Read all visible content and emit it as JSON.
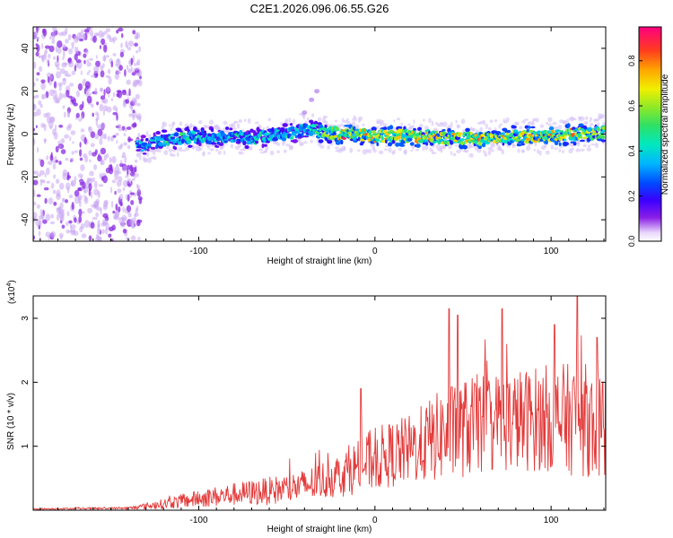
{
  "figure_title": "C2E1.2026.096.06.55.G26",
  "chart_data": [
    {
      "type": "heatmap",
      "title": "C2E1.2026.096.06.55.G26",
      "xlabel": "Height of straight line (km)",
      "ylabel": "Frequency (Hz)",
      "xlim": [
        -194,
        131
      ],
      "ylim": [
        -50,
        50
      ],
      "xticks": [
        -100,
        0,
        100
      ],
      "yticks": [
        -40,
        -20,
        0,
        20,
        40
      ],
      "x_tick_labels": [
        "-100",
        "0",
        "100"
      ],
      "y_tick_labels": [
        "-40",
        "-20",
        "0",
        "20",
        "40"
      ],
      "colorbar": {
        "label": "Normalized spectral amplitude",
        "range": [
          0,
          0.95
        ],
        "ticks": [
          0.0,
          0.2,
          0.4,
          0.6,
          0.8
        ],
        "tick_labels": [
          "0.0",
          "0.2",
          "0.4",
          "0.6",
          "0.8"
        ]
      },
      "noise_region_x": [
        -194,
        -133
      ],
      "ridge": [
        {
          "x": -165,
          "f": -10,
          "amp": 0.3
        },
        {
          "x": -150,
          "f": -8,
          "amp": 0.35
        },
        {
          "x": -140,
          "f": -7,
          "amp": 0.4
        },
        {
          "x": -130,
          "f": -5,
          "amp": 0.42
        },
        {
          "x": -120,
          "f": -3,
          "amp": 0.48
        },
        {
          "x": -110,
          "f": -2,
          "amp": 0.55
        },
        {
          "x": -100,
          "f": -1,
          "amp": 0.55
        },
        {
          "x": -90,
          "f": -2,
          "amp": 0.45
        },
        {
          "x": -80,
          "f": -1,
          "amp": 0.5
        },
        {
          "x": -70,
          "f": -2,
          "amp": 0.45
        },
        {
          "x": -60,
          "f": -1,
          "amp": 0.5
        },
        {
          "x": -50,
          "f": 0,
          "amp": 0.5
        },
        {
          "x": -40,
          "f": 2,
          "amp": 0.5
        },
        {
          "x": -30,
          "f": 1,
          "amp": 0.6
        },
        {
          "x": -20,
          "f": 0,
          "amp": 0.9
        },
        {
          "x": -10,
          "f": 0,
          "amp": 0.75
        },
        {
          "x": 0,
          "f": -1,
          "amp": 0.85
        },
        {
          "x": 10,
          "f": -1,
          "amp": 0.8
        },
        {
          "x": 20,
          "f": -1,
          "amp": 0.85
        },
        {
          "x": 30,
          "f": -1,
          "amp": 0.8
        },
        {
          "x": 40,
          "f": -2,
          "amp": 0.75
        },
        {
          "x": 50,
          "f": -2,
          "amp": 0.75
        },
        {
          "x": 60,
          "f": -2,
          "amp": 0.85
        },
        {
          "x": 70,
          "f": -1,
          "amp": 0.8
        },
        {
          "x": 80,
          "f": -1,
          "amp": 0.75
        },
        {
          "x": 90,
          "f": -1,
          "amp": 0.8
        },
        {
          "x": 100,
          "f": -1,
          "amp": 0.85
        },
        {
          "x": 110,
          "f": 0,
          "amp": 0.8
        },
        {
          "x": 120,
          "f": 0,
          "amp": 0.75
        },
        {
          "x": 131,
          "f": 1,
          "amp": 0.7
        }
      ],
      "spur": [
        {
          "x": -40,
          "f": 10
        },
        {
          "x": -36,
          "f": 16
        },
        {
          "x": -33,
          "f": 20
        }
      ]
    },
    {
      "type": "line",
      "xlabel": "Height of straight line (km)",
      "ylabel": "SNR (10 * v/v)",
      "y_scale_label": "(x10",
      "y_scale_exponent": "4",
      "y_scale_suffix": ")",
      "xlim": [
        -194,
        131
      ],
      "ylim": [
        0,
        3.35
      ],
      "xticks": [
        -100,
        0,
        100
      ],
      "yticks": [
        1,
        2,
        3
      ],
      "x_tick_labels": [
        "-100",
        "0",
        "100"
      ],
      "y_tick_labels": [
        "1",
        "2",
        "3"
      ],
      "line_color": "#e23a3a",
      "envelope": [
        {
          "x": -194,
          "mean": 0.02,
          "spread": 0.01
        },
        {
          "x": -140,
          "mean": 0.03,
          "spread": 0.02
        },
        {
          "x": -120,
          "mean": 0.1,
          "spread": 0.08
        },
        {
          "x": -100,
          "mean": 0.18,
          "spread": 0.14
        },
        {
          "x": -80,
          "mean": 0.25,
          "spread": 0.18
        },
        {
          "x": -60,
          "mean": 0.3,
          "spread": 0.22
        },
        {
          "x": -40,
          "mean": 0.38,
          "spread": 0.26
        },
        {
          "x": -20,
          "mean": 0.55,
          "spread": 0.35
        },
        {
          "x": 0,
          "mean": 0.8,
          "spread": 0.5
        },
        {
          "x": 20,
          "mean": 0.95,
          "spread": 0.55
        },
        {
          "x": 40,
          "mean": 1.2,
          "spread": 0.75
        },
        {
          "x": 60,
          "mean": 1.35,
          "spread": 0.8
        },
        {
          "x": 80,
          "mean": 1.4,
          "spread": 0.8
        },
        {
          "x": 100,
          "mean": 1.45,
          "spread": 0.85
        },
        {
          "x": 120,
          "mean": 1.4,
          "spread": 0.9
        },
        {
          "x": 131,
          "mean": 1.3,
          "spread": 0.8
        }
      ],
      "peaks": [
        {
          "x": -8,
          "y": 1.9
        },
        {
          "x": 42,
          "y": 3.15
        },
        {
          "x": 47,
          "y": 3.05
        },
        {
          "x": 72,
          "y": 3.15
        },
        {
          "x": 102,
          "y": 2.9
        },
        {
          "x": 115,
          "y": 3.35
        },
        {
          "x": 126,
          "y": 2.7
        }
      ]
    }
  ],
  "colors": {
    "background": "#ffffff",
    "axis": "#000000",
    "noise": "#9b3fd8",
    "line": "#e23a3a"
  }
}
